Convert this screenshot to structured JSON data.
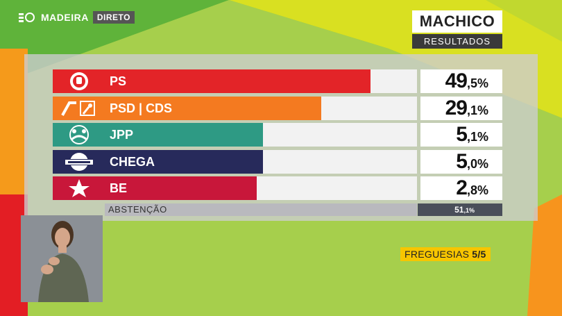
{
  "broadcast": {
    "brand": "MADEIRA",
    "live_label": "DIRETO"
  },
  "header": {
    "title": "MACHICO",
    "subtitle": "RESULTADOS"
  },
  "results": [
    {
      "party": "PS",
      "whole": "49",
      "decimal": ",5%",
      "percent": 49.5,
      "color": "#e32428",
      "logo": "rose-fist-icon"
    },
    {
      "party": "PSD | CDS",
      "whole": "29",
      "decimal": ",1%",
      "percent": 29.1,
      "color": "#f47a20",
      "logo": "psd-cds-arrows-icon"
    },
    {
      "party": "JPP",
      "whole": "5",
      "decimal": ",1%",
      "percent": 5.1,
      "color": "#2e9a84",
      "logo": "jpp-figures-icon"
    },
    {
      "party": "CHEGA",
      "whole": "5",
      "decimal": ",0%",
      "percent": 5.0,
      "color": "#272a5b",
      "logo": "chega-badge-icon"
    },
    {
      "party": "BE",
      "whole": "2",
      "decimal": ",8%",
      "percent": 2.8,
      "color": "#c8173a",
      "logo": "be-star-icon"
    }
  ],
  "abstention": {
    "label": "ABSTENÇÃO",
    "value_whole": "51",
    "value_decimal": ",1%"
  },
  "parishes": {
    "label": "FREGUESIAS",
    "count": "5/5"
  }
}
